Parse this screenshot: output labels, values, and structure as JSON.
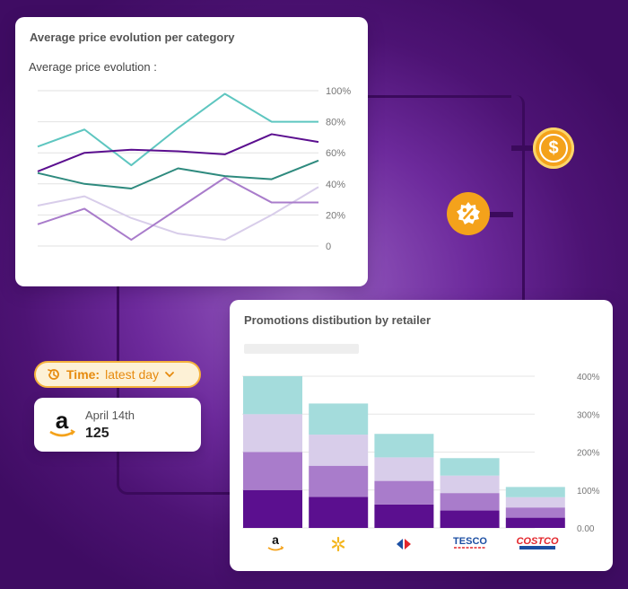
{
  "price_card": {
    "title": "Average price evolution per category",
    "subtitle": "Average price evolution :"
  },
  "promo_card": {
    "title": "Promotions distibution by retailer"
  },
  "time_chip": {
    "label": "Time:",
    "value": "latest day"
  },
  "amazon_card": {
    "date": "April 14th",
    "count": "125"
  },
  "colors": {
    "teal": "#5ec6c0",
    "dark_purple": "#5b0f8f",
    "dark_teal": "#2e8a7e",
    "light_purple": "#d8cdea",
    "mid_purple": "#a97ccb",
    "accent_orange": "#f4a21b"
  },
  "chart_data": [
    {
      "type": "line",
      "title": "Average price evolution :",
      "x": [
        0,
        1,
        2,
        3,
        4,
        5,
        6
      ],
      "ylim": [
        0,
        100
      ],
      "y_tick_labels": [
        "100%",
        "80%",
        "60%",
        "40%",
        "20%",
        "0"
      ],
      "series": [
        {
          "name": "series-teal",
          "color": "#5ec6c0",
          "values": [
            64,
            75,
            52,
            76,
            98,
            80,
            80
          ]
        },
        {
          "name": "series-dark-purple",
          "color": "#5b0f8f",
          "values": [
            48,
            60,
            62,
            61,
            59,
            72,
            67
          ]
        },
        {
          "name": "series-dark-teal",
          "color": "#2e8a7e",
          "values": [
            47,
            40,
            37,
            50,
            45,
            43,
            55
          ]
        },
        {
          "name": "series-light-purple",
          "color": "#d8cdea",
          "values": [
            26,
            32,
            18,
            8,
            4,
            20,
            38
          ]
        },
        {
          "name": "series-mid-purple",
          "color": "#a97ccb",
          "values": [
            14,
            24,
            4,
            24,
            44,
            28,
            28
          ]
        }
      ]
    },
    {
      "type": "bar",
      "stacked": true,
      "title": "Promotions distibution by retailer",
      "categories": [
        "Amazon",
        "Walmart",
        "Carrefour",
        "Tesco",
        "Costco"
      ],
      "ylim": [
        0,
        400
      ],
      "y_tick_labels": [
        "400%",
        "300%",
        "200%",
        "100%",
        "0.00"
      ],
      "series": [
        {
          "name": "segment-1",
          "color": "#5b0f8f",
          "values": [
            100,
            82,
            62,
            46,
            27
          ]
        },
        {
          "name": "segment-2",
          "color": "#a97ccb",
          "values": [
            100,
            82,
            62,
            46,
            27
          ]
        },
        {
          "name": "segment-3",
          "color": "#d8cdea",
          "values": [
            100,
            82,
            62,
            46,
            27
          ]
        },
        {
          "name": "segment-4",
          "color": "#a4dcdc",
          "values": [
            100,
            82,
            62,
            46,
            27
          ]
        }
      ]
    }
  ]
}
